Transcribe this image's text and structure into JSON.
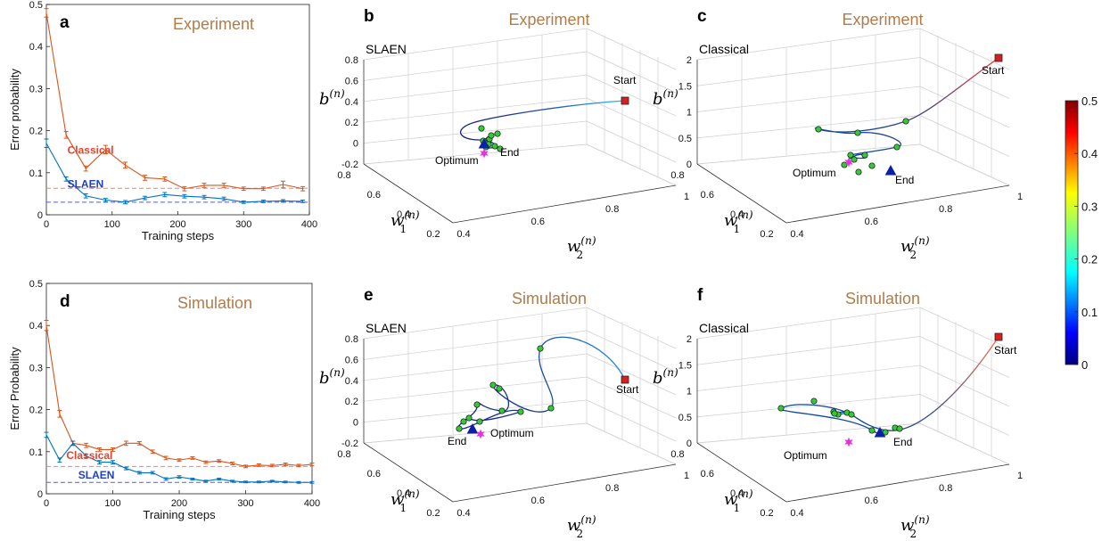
{
  "chart_data": [
    {
      "id": "a",
      "type": "line",
      "letter": "a",
      "title": "Experiment",
      "xlabel": "Training steps",
      "ylabel": "Error probability",
      "xlim": [
        0,
        400
      ],
      "ylim": [
        0,
        0.5
      ],
      "xticks": [
        "0",
        "100",
        "200",
        "300",
        "400"
      ],
      "yticks": [
        "0",
        "0.1",
        "0.2",
        "0.3",
        "0.4",
        "0.5"
      ],
      "x": [
        0,
        30,
        60,
        90,
        120,
        150,
        180,
        210,
        240,
        270,
        300,
        330,
        360,
        390
      ],
      "series": [
        {
          "name": "Classical",
          "color": "#d95319",
          "dashed_level": 0.063,
          "values": [
            0.48,
            0.19,
            0.11,
            0.155,
            0.118,
            0.088,
            0.085,
            0.062,
            0.07,
            0.07,
            0.062,
            0.062,
            0.072,
            0.062
          ],
          "errors": [
            0.01,
            0.008,
            0.006,
            0.01,
            0.007,
            0.006,
            0.005,
            0.005,
            0.005,
            0.005,
            0.004,
            0.004,
            0.008,
            0.005
          ]
        },
        {
          "name": "SLAEN",
          "color": "#0072bd",
          "dashed_level": 0.03,
          "values": [
            0.17,
            0.085,
            0.045,
            0.035,
            0.03,
            0.04,
            0.048,
            0.044,
            0.042,
            0.038,
            0.03,
            0.032,
            0.033,
            0.032
          ],
          "errors": [
            0.01,
            0.005,
            0.005,
            0.004,
            0.004,
            0.004,
            0.005,
            0.004,
            0.004,
            0.004,
            0.003,
            0.003,
            0.003,
            0.003
          ]
        }
      ]
    },
    {
      "id": "d",
      "type": "line",
      "letter": "d",
      "title": "Simulation",
      "xlabel": "Training steps",
      "ylabel": "Error Probability",
      "xlim": [
        0,
        400
      ],
      "ylim": [
        0,
        0.5
      ],
      "xticks": [
        "0",
        "100",
        "200",
        "300",
        "400"
      ],
      "yticks": [
        "0",
        "0.1",
        "0.2",
        "0.3",
        "0.4",
        "0.5"
      ],
      "x": [
        0,
        20,
        40,
        60,
        80,
        100,
        120,
        140,
        160,
        180,
        200,
        220,
        240,
        260,
        280,
        300,
        320,
        340,
        360,
        380,
        400
      ],
      "series": [
        {
          "name": "Classical",
          "color": "#d95319",
          "dashed_level": 0.065,
          "values": [
            0.4,
            0.19,
            0.12,
            0.115,
            0.105,
            0.105,
            0.12,
            0.12,
            0.1,
            0.085,
            0.08,
            0.085,
            0.075,
            0.078,
            0.072,
            0.065,
            0.068,
            0.067,
            0.07,
            0.067,
            0.07
          ],
          "errors": [
            0.012,
            0.008,
            0.005,
            0.005,
            0.004,
            0.004,
            0.005,
            0.004,
            0.004,
            0.004,
            0.003,
            0.003,
            0.003,
            0.003,
            0.003,
            0.003,
            0.003,
            0.003,
            0.003,
            0.003,
            0.003
          ]
        },
        {
          "name": "SLAEN",
          "color": "#0072bd",
          "dashed_level": 0.027,
          "values": [
            0.14,
            0.08,
            0.12,
            0.09,
            0.075,
            0.075,
            0.06,
            0.05,
            0.05,
            0.035,
            0.04,
            0.035,
            0.03,
            0.035,
            0.03,
            0.028,
            0.028,
            0.03,
            0.028,
            0.027,
            0.027
          ],
          "errors": [
            0.006,
            0.005,
            0.005,
            0.004,
            0.004,
            0.004,
            0.003,
            0.003,
            0.003,
            0.003,
            0.003,
            0.002,
            0.002,
            0.002,
            0.002,
            0.002,
            0.002,
            0.002,
            0.002,
            0.002,
            0.002
          ]
        }
      ]
    },
    {
      "id": "b",
      "type": "scatter3d",
      "letter": "b",
      "title": "Experiment",
      "label": "SLAEN",
      "zticks": [
        "-0.2",
        "0",
        "0.2",
        "0.4",
        "0.6",
        "0.8"
      ],
      "w1ticks": [
        "0.8",
        "0.6",
        "0.4",
        "0.2"
      ],
      "w2ticks": [
        "0.4",
        "0.6",
        "0.8",
        "1"
      ],
      "start_label": "Start",
      "end_label": "End",
      "optimum_label": "Optimum",
      "path_color_low": "#1a237e",
      "path_color_high": "#29b6f6"
    },
    {
      "id": "c",
      "type": "scatter3d",
      "letter": "c",
      "title": "Experiment",
      "label": "Classical",
      "zticks": [
        "0",
        "0.5",
        "1",
        "1.5",
        "2"
      ],
      "w1ticks": [
        "0.8",
        "0.6",
        "0.4",
        "0.2"
      ],
      "w2ticks": [
        "0.4",
        "0.6",
        "0.8",
        "1"
      ],
      "start_label": "Start",
      "end_label": "End",
      "optimum_label": "Optimum",
      "path_color_low": "#0d47a1",
      "path_color_high": "#e53935"
    },
    {
      "id": "e",
      "type": "scatter3d",
      "letter": "e",
      "title": "Simulation",
      "label": "SLAEN",
      "zticks": [
        "-0.2",
        "0",
        "0.2",
        "0.4",
        "0.6",
        "0.8"
      ],
      "w1ticks": [
        "0.8",
        "0.6",
        "0.4",
        "0.2"
      ],
      "w2ticks": [
        "0.4",
        "0.6",
        "0.8",
        "1"
      ],
      "start_label": "Start",
      "end_label": "End",
      "optimum_label": "Optimum",
      "path_color_low": "#1a237e",
      "path_color_high": "#1e88e5"
    },
    {
      "id": "f",
      "type": "scatter3d",
      "letter": "f",
      "title": "Simulation",
      "label": "Classical",
      "zticks": [
        "0",
        "0.5",
        "1",
        "1.5",
        "2"
      ],
      "w1ticks": [
        "0.8",
        "0.6",
        "0.4",
        "0.2"
      ],
      "w2ticks": [
        "0.4",
        "0.6",
        "0.8",
        "1"
      ],
      "start_label": "Start",
      "end_label": "End",
      "optimum_label": "Optimum",
      "path_color_low": "#0d47a1",
      "path_color_high": "#ff7043"
    }
  ],
  "colorbar": {
    "ticks": [
      "0",
      "0.1",
      "0.2",
      "0.3",
      "0.4",
      "0.5"
    ],
    "range": [
      0,
      0.5
    ],
    "colormap": "jet"
  }
}
